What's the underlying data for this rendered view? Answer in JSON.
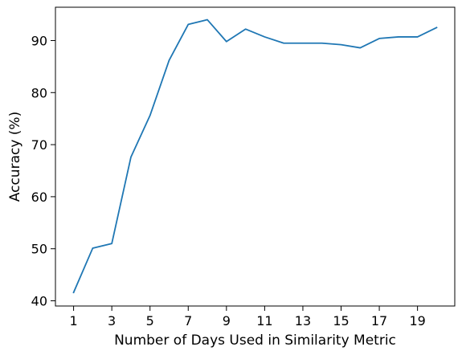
{
  "chart_data": {
    "type": "line",
    "title": "",
    "xlabel": "Number of Days Used in Similarity Metric",
    "ylabel": "Accuracy (%)",
    "xlim": [
      0.05,
      20.95
    ],
    "ylim": [
      39.0,
      96.4
    ],
    "x_ticks": [
      1,
      3,
      5,
      7,
      9,
      11,
      13,
      15,
      17,
      19
    ],
    "y_ticks": [
      40,
      50,
      60,
      70,
      80,
      90
    ],
    "grid": false,
    "legend": "none",
    "line_color": "#1f77b4",
    "series": [
      {
        "x": [
          1,
          2,
          3,
          4,
          5,
          6,
          7,
          8,
          9,
          10,
          11,
          12,
          13,
          14,
          15,
          16,
          17,
          18,
          19,
          20
        ],
        "values": [
          41.6,
          50.1,
          51.0,
          67.6,
          75.6,
          86.2,
          93.1,
          94.0,
          89.8,
          92.2,
          90.7,
          89.5,
          89.5,
          89.5,
          89.2,
          88.6,
          90.4,
          90.7,
          90.7,
          92.5
        ]
      }
    ]
  }
}
